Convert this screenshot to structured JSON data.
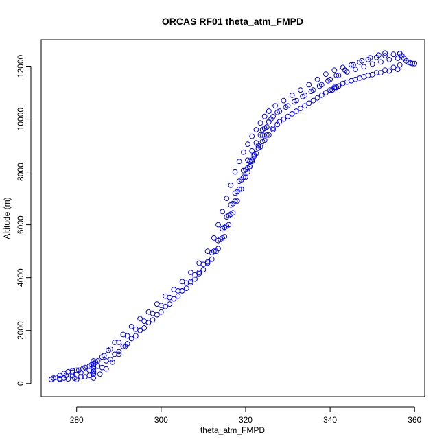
{
  "chart_data": {
    "type": "scatter",
    "title": "ORCAS RF01 theta_atm_FMPD",
    "xlabel": "theta_atm_FMPD",
    "ylabel": "Altitude (m)",
    "xlim": [
      271.6,
      362.4
    ],
    "ylim": [
      -500,
      13000
    ],
    "xticks": [
      280,
      300,
      320,
      340,
      360
    ],
    "yticks": [
      0,
      2000,
      4000,
      6000,
      8000,
      10000,
      12000
    ],
    "grid": false,
    "marker": "open-circle",
    "point_color": "#0000ff",
    "series": [
      {
        "points": [
          [
            274.0,
            150
          ],
          [
            275.0,
            230
          ],
          [
            276.0,
            300
          ],
          [
            277.0,
            380
          ],
          [
            278.0,
            440
          ],
          [
            279.0,
            480
          ],
          [
            280.0,
            500
          ],
          [
            281.5,
            560
          ],
          [
            283.0,
            650
          ],
          [
            284.5,
            800
          ],
          [
            286.0,
            1000
          ],
          [
            287.5,
            1250
          ],
          [
            289.0,
            1550
          ],
          [
            291.0,
            1850
          ],
          [
            293.0,
            2150
          ],
          [
            295.0,
            2450
          ],
          [
            297.0,
            2700
          ],
          [
            299.0,
            3000
          ],
          [
            301.0,
            3300
          ],
          [
            303.0,
            3550
          ],
          [
            305.0,
            3850
          ],
          [
            307.0,
            4200
          ],
          [
            309.0,
            4550
          ],
          [
            311.0,
            5000
          ],
          [
            312.5,
            5500
          ],
          [
            313.5,
            6000
          ],
          [
            314.5,
            6500
          ],
          [
            315.5,
            7000
          ],
          [
            316.5,
            7500
          ],
          [
            317.5,
            8000
          ],
          [
            318.5,
            8400
          ],
          [
            319.5,
            8750
          ],
          [
            320.5,
            9050
          ],
          [
            321.5,
            9350
          ],
          [
            322.5,
            9600
          ],
          [
            323.5,
            9850
          ],
          [
            324.5,
            10100
          ],
          [
            325.5,
            10300
          ],
          [
            327.0,
            10500
          ],
          [
            329.0,
            10700
          ],
          [
            331.0,
            10900
          ],
          [
            333.0,
            11100
          ],
          [
            335.0,
            11300
          ],
          [
            337.0,
            11500
          ],
          [
            339.0,
            11700
          ],
          [
            341.0,
            11850
          ],
          [
            343.0,
            11950
          ],
          [
            345.0,
            12050
          ],
          [
            347.0,
            12150
          ],
          [
            349.0,
            12250
          ],
          [
            351.0,
            12330
          ],
          [
            353.0,
            12400
          ],
          [
            355.0,
            12450
          ],
          [
            356.5,
            12480
          ]
        ]
      },
      {
        "points": [
          [
            276.0,
            150
          ],
          [
            277.5,
            300
          ],
          [
            279.0,
            420
          ],
          [
            280.5,
            500
          ],
          [
            282.0,
            600
          ],
          [
            283.5,
            700
          ],
          [
            285.0,
            850
          ],
          [
            286.5,
            1050
          ],
          [
            288.0,
            1300
          ],
          [
            290.0,
            1550
          ],
          [
            292.0,
            1800
          ],
          [
            294.0,
            2050
          ],
          [
            296.0,
            2350
          ],
          [
            298.0,
            2650
          ],
          [
            300.0,
            2950
          ],
          [
            302.0,
            3250
          ],
          [
            304.0,
            3500
          ],
          [
            306.0,
            3800
          ],
          [
            308.0,
            4100
          ],
          [
            310.0,
            4500
          ],
          [
            312.0,
            4950
          ],
          [
            313.5,
            5400
          ],
          [
            314.5,
            5850
          ],
          [
            315.5,
            6300
          ],
          [
            316.5,
            6750
          ],
          [
            317.5,
            7200
          ],
          [
            318.5,
            7650
          ],
          [
            319.5,
            8050
          ],
          [
            320.5,
            8450
          ],
          [
            321.5,
            8800
          ],
          [
            322.5,
            9100
          ],
          [
            323.5,
            9400
          ],
          [
            324.5,
            9650
          ],
          [
            325.5,
            9900
          ],
          [
            326.5,
            10100
          ],
          [
            328.0,
            10300
          ],
          [
            330.0,
            10500
          ],
          [
            332.0,
            10700
          ],
          [
            334.0,
            10900
          ],
          [
            336.0,
            11100
          ],
          [
            338.0,
            11300
          ],
          [
            340.0,
            11500
          ],
          [
            342.0,
            11650
          ],
          [
            344.0,
            11780
          ],
          [
            346.0,
            11880
          ],
          [
            348.0,
            11980
          ],
          [
            350.0,
            12080
          ],
          [
            352.0,
            12160
          ],
          [
            354.0,
            12250
          ],
          [
            356.0,
            12300
          ]
        ]
      },
      {
        "points": [
          [
            277.0,
            200
          ],
          [
            279.0,
            300
          ],
          [
            281.0,
            400
          ],
          [
            283.0,
            500
          ],
          [
            285.0,
            650
          ],
          [
            287.0,
            850
          ],
          [
            289.0,
            1100
          ],
          [
            291.0,
            1400
          ],
          [
            293.0,
            1700
          ],
          [
            295.0,
            2000
          ],
          [
            297.0,
            2300
          ],
          [
            299.0,
            2600
          ],
          [
            301.0,
            2900
          ],
          [
            303.0,
            3200
          ],
          [
            305.0,
            3500
          ],
          [
            307.0,
            3800
          ],
          [
            309.0,
            4150
          ],
          [
            311.0,
            4550
          ],
          [
            313.0,
            5000
          ],
          [
            314.5,
            5500
          ],
          [
            315.5,
            5950
          ],
          [
            316.5,
            6400
          ],
          [
            317.5,
            6900
          ],
          [
            318.5,
            7350
          ],
          [
            319.5,
            7800
          ],
          [
            320.5,
            8150
          ],
          [
            321.5,
            8450
          ],
          [
            322.5,
            8700
          ],
          [
            323.5,
            8950
          ],
          [
            324.5,
            9200
          ],
          [
            325.5,
            9400
          ],
          [
            326.5,
            9600
          ],
          [
            327.5,
            9800
          ],
          [
            329.0,
            10000
          ],
          [
            331.0,
            10200
          ],
          [
            333.0,
            10400
          ],
          [
            335.0,
            10600
          ],
          [
            337.0,
            10800
          ],
          [
            339.0,
            11000
          ],
          [
            341.0,
            11200
          ],
          [
            343.0,
            11350
          ],
          [
            345.0,
            11450
          ],
          [
            347.0,
            11550
          ],
          [
            349.0,
            11650
          ],
          [
            351.0,
            11750
          ],
          [
            353.0,
            11850
          ],
          [
            355.0,
            11950
          ],
          [
            356.5,
            12050
          ]
        ]
      },
      {
        "points": [
          [
            280.0,
            150
          ],
          [
            282.0,
            250
          ],
          [
            284.0,
            400
          ],
          [
            286.0,
            600
          ],
          [
            288.0,
            900
          ],
          [
            290.0,
            1200
          ],
          [
            292.0,
            1500
          ],
          [
            294.0,
            1800
          ],
          [
            296.0,
            2100
          ],
          [
            298.0,
            2400
          ],
          [
            300.0,
            2700
          ],
          [
            302.0,
            3000
          ],
          [
            304.0,
            3300
          ],
          [
            306.0,
            3600
          ],
          [
            308.0,
            3950
          ],
          [
            310.0,
            4300
          ],
          [
            312.0,
            4700
          ],
          [
            313.5,
            5100
          ],
          [
            315.0,
            5550
          ],
          [
            316.0,
            6000
          ],
          [
            317.0,
            6450
          ],
          [
            318.0,
            6900
          ],
          [
            319.0,
            7350
          ],
          [
            320.0,
            7800
          ],
          [
            321.0,
            8200
          ],
          [
            322.0,
            8600
          ],
          [
            323.0,
            9000
          ],
          [
            324.0,
            9400
          ],
          [
            325.0,
            9700
          ],
          [
            326.0,
            10000
          ],
          [
            327.5,
            10250
          ],
          [
            329.5,
            10450
          ],
          [
            331.5,
            10650
          ],
          [
            333.5,
            10850
          ],
          [
            335.5,
            11050
          ],
          [
            337.5,
            11250
          ],
          [
            339.5,
            11450
          ],
          [
            341.5,
            11650
          ],
          [
            343.5,
            11850
          ],
          [
            345.5,
            12050
          ],
          [
            347.5,
            12200
          ],
          [
            349.5,
            12320
          ],
          [
            351.5,
            12420
          ],
          [
            353.0,
            12500
          ]
        ]
      },
      {
        "points": [
          [
            284.0,
            200
          ],
          [
            285.5,
            350
          ],
          [
            287.0,
            550
          ],
          [
            288.5,
            800
          ],
          [
            290.0,
            1100
          ],
          [
            291.5,
            1400
          ],
          [
            293.0,
            1700
          ],
          [
            295.0,
            2000
          ],
          [
            297.0,
            2300
          ],
          [
            299.0,
            2600
          ],
          [
            301.0,
            2900
          ],
          [
            303.0,
            3200
          ],
          [
            305.0,
            3500
          ],
          [
            307.0,
            3850
          ],
          [
            309.0,
            4200
          ],
          [
            311.0,
            4600
          ],
          [
            312.5,
            5000
          ],
          [
            314.0,
            5450
          ],
          [
            315.0,
            5900
          ],
          [
            316.0,
            6350
          ],
          [
            317.0,
            6800
          ],
          [
            318.0,
            7250
          ],
          [
            319.0,
            7700
          ],
          [
            320.0,
            8100
          ],
          [
            321.0,
            8400
          ],
          [
            322.0,
            8650
          ],
          [
            323.0,
            8900
          ],
          [
            324.0,
            9150
          ],
          [
            325.0,
            9400
          ],
          [
            326.5,
            9650
          ],
          [
            328.0,
            9900
          ],
          [
            330.0,
            10100
          ],
          [
            332.0,
            10300
          ],
          [
            334.0,
            10500
          ],
          [
            336.0,
            10700
          ],
          [
            338.0,
            10900
          ],
          [
            340.0,
            11100
          ],
          [
            342.0,
            11250
          ],
          [
            344.0,
            11400
          ],
          [
            346.0,
            11500
          ],
          [
            348.0,
            11600
          ],
          [
            350.0,
            11680
          ],
          [
            352.0,
            11750
          ],
          [
            354.0,
            11820
          ],
          [
            356.0,
            11880
          ]
        ]
      },
      {
        "points": [
          [
            274.5,
            200
          ],
          [
            276.0,
            180
          ],
          [
            278.0,
            170
          ],
          [
            279.5,
            200
          ],
          [
            281.0,
            250
          ],
          [
            283.0,
            300
          ],
          [
            284.0,
            350
          ],
          [
            284.0,
            450
          ],
          [
            284.0,
            550
          ],
          [
            284.0,
            650
          ],
          [
            284.0,
            750
          ],
          [
            284.0,
            850
          ]
        ]
      },
      {
        "points": [
          [
            356.5,
            12480
          ],
          [
            357.0,
            12400
          ],
          [
            357.5,
            12300
          ],
          [
            358.0,
            12200
          ],
          [
            358.5,
            12150
          ],
          [
            359.0,
            12120
          ],
          [
            359.5,
            12100
          ],
          [
            360.0,
            12100
          ]
        ]
      },
      {
        "points": [
          [
            340.5,
            11100
          ],
          [
            341.0,
            11150
          ],
          [
            341.5,
            11200
          ],
          [
            342.0,
            11250
          ],
          [
            324.0,
            9600
          ],
          [
            324.5,
            9650
          ],
          [
            325.0,
            9700
          ],
          [
            320.5,
            8000
          ],
          [
            321.0,
            8200
          ],
          [
            321.5,
            8400
          ]
        ]
      }
    ]
  }
}
